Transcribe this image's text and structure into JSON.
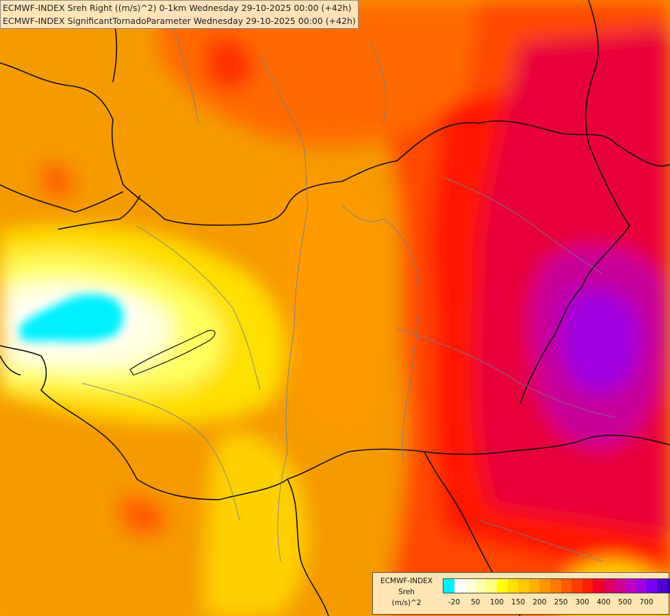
{
  "titles": [
    "ECMWF-INDEX Sreh Right ((m/s)^2) 0-1km Wednesday 29-10-2025 00:00 (+42h)",
    "ECMWF-INDEX SignificantTornadoParameter Wednesday 29-10-2025 00:00 (+42h)"
  ],
  "legend": {
    "line1": "ECMWF-INDEX",
    "line2": "Sreh",
    "line3": "(m/s)^2",
    "colors": [
      "#00f0ff",
      "#ffffff",
      "#ffffe0",
      "#ffffb0",
      "#ffff80",
      "#ffff00",
      "#ffe000",
      "#ffc800",
      "#ffb000",
      "#ff9600",
      "#ff7800",
      "#ff5a00",
      "#ff3c00",
      "#ff1e00",
      "#f00028",
      "#e0005a",
      "#d00090",
      "#c000c0",
      "#a000e0",
      "#7800f0",
      "#5000d0",
      "#3000a0",
      "#101070"
    ],
    "ticks": [
      "-20",
      "50",
      "100",
      "150",
      "200",
      "250",
      "300",
      "400",
      "500",
      "700"
    ]
  }
}
